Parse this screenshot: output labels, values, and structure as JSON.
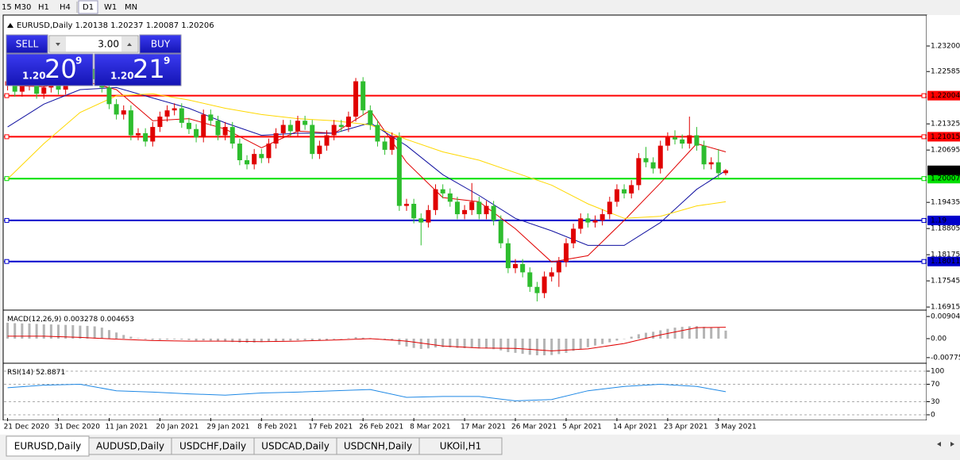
{
  "toolbar": [
    "15",
    "M30",
    "H1",
    "H4",
    "D1",
    "W1",
    "MN"
  ],
  "symbol": "EURUSD,Daily",
  "trade_panel": {
    "sell": "SELL",
    "buy": "BUY",
    "lots": "3.00",
    "bid": {
      "big": "1.20",
      "pips": "20",
      "frac": "9"
    },
    "ask": {
      "big": "1.20",
      "pips": "21",
      "frac": "9"
    }
  },
  "chart_data": [
    {
      "type": "candlestick",
      "up_color": "#e00000",
      "down_color": "#2ebd2e",
      "open": [
        1.2225,
        1.2235,
        1.221,
        1.2225,
        1.224,
        1.2205,
        1.222,
        1.223,
        1.2215,
        1.2245,
        1.226,
        1.225,
        1.2265,
        1.224,
        1.222,
        1.218,
        1.2155,
        1.2165,
        1.2105,
        1.211,
        1.209,
        1.2125,
        1.215,
        1.2165,
        1.217,
        1.2135,
        1.212,
        1.21,
        1.2155,
        1.214,
        1.2105,
        1.2125,
        1.2085,
        1.2045,
        1.2035,
        1.206,
        1.205,
        1.2085,
        1.211,
        1.213,
        1.2115,
        1.214,
        1.213,
        1.206,
        1.208,
        1.2105,
        1.213,
        1.2125,
        1.215,
        1.2235,
        1.2165,
        1.213,
        1.209,
        1.207,
        1.21,
        1.1935,
        1.194,
        1.1905,
        1.1895,
        1.1925,
        1.1975,
        1.1965,
        1.1945,
        1.1915,
        1.1925,
        1.1945,
        1.1915,
        1.1935,
        1.19,
        1.1845,
        1.1785,
        1.1795,
        1.1775,
        1.174,
        1.1725,
        1.1765,
        1.1775,
        1.18,
        1.1845,
        1.188,
        1.1905,
        1.1895,
        1.19,
        1.1915,
        1.1945,
        1.1975,
        1.1965,
        1.1985,
        1.205,
        1.204,
        1.2025,
        1.208,
        1.21,
        1.2095,
        1.2085,
        1.2105,
        1.208,
        1.2035,
        1.204,
        1.20138
      ],
      "high": [
        1.2247,
        1.2247,
        1.2237,
        1.2252,
        1.2252,
        1.2232,
        1.2242,
        1.2242,
        1.2257,
        1.2272,
        1.2272,
        1.2277,
        1.2277,
        1.2252,
        1.2232,
        1.2192,
        1.2177,
        1.2177,
        1.2122,
        1.2122,
        1.2137,
        1.2162,
        1.2177,
        1.2182,
        1.2182,
        1.2147,
        1.2132,
        1.2167,
        1.2167,
        1.2152,
        1.2137,
        1.2137,
        1.2097,
        1.2057,
        1.2072,
        1.2072,
        1.2097,
        1.2122,
        1.2142,
        1.2142,
        1.2152,
        1.2152,
        1.2142,
        1.2092,
        1.2117,
        1.2142,
        1.2142,
        1.2162,
        1.2243,
        1.2245,
        1.2177,
        1.2142,
        1.2102,
        1.2112,
        1.2112,
        1.1952,
        1.1952,
        1.1917,
        1.1937,
        1.1987,
        1.1987,
        1.1977,
        1.1957,
        1.1937,
        1.199,
        1.1957,
        1.1947,
        1.1947,
        1.1912,
        1.1857,
        1.1807,
        1.1807,
        1.1787,
        1.1752,
        1.1777,
        1.1787,
        1.1812,
        1.1857,
        1.1892,
        1.1917,
        1.1917,
        1.1912,
        1.1927,
        1.1957,
        1.1987,
        1.1987,
        1.1997,
        1.2062,
        1.2077,
        1.2052,
        1.2092,
        1.2112,
        1.2117,
        1.2107,
        1.215,
        1.2125,
        1.2092,
        1.2052,
        1.2072,
        1.20237
      ],
      "low": [
        1.2213,
        1.2198,
        1.2198,
        1.2213,
        1.2193,
        1.2193,
        1.2208,
        1.2203,
        1.2203,
        1.2233,
        1.2238,
        1.2238,
        1.2228,
        1.2208,
        1.2168,
        1.2143,
        1.2143,
        1.2093,
        1.2093,
        1.2078,
        1.2078,
        1.2113,
        1.2138,
        1.2153,
        1.2123,
        1.2108,
        1.2088,
        1.2088,
        1.2128,
        1.2093,
        1.2093,
        1.2073,
        1.2033,
        1.2023,
        1.2023,
        1.2038,
        1.2038,
        1.2073,
        1.2098,
        1.2103,
        1.2103,
        1.2118,
        1.2048,
        1.2048,
        1.2068,
        1.2093,
        1.2113,
        1.2113,
        1.2138,
        1.2153,
        1.2118,
        1.2078,
        1.2058,
        1.2058,
        1.1923,
        1.1923,
        1.1893,
        1.184,
        1.1883,
        1.1913,
        1.1953,
        1.1933,
        1.1903,
        1.1903,
        1.1913,
        1.1903,
        1.1903,
        1.1888,
        1.1833,
        1.1773,
        1.1773,
        1.1763,
        1.1728,
        1.1705,
        1.1713,
        1.1753,
        1.174,
        1.1788,
        1.1833,
        1.1868,
        1.1883,
        1.1883,
        1.1888,
        1.1903,
        1.1933,
        1.1953,
        1.1953,
        1.1973,
        1.2028,
        1.2013,
        1.2013,
        1.2068,
        1.2083,
        1.2073,
        1.2073,
        1.2068,
        1.2023,
        1.2023,
        1.2003,
        1.20087
      ],
      "close": [
        1.2235,
        1.221,
        1.2225,
        1.224,
        1.2205,
        1.222,
        1.223,
        1.2215,
        1.2245,
        1.226,
        1.225,
        1.2265,
        1.224,
        1.222,
        1.218,
        1.2155,
        1.2165,
        1.2105,
        1.211,
        1.209,
        1.2125,
        1.215,
        1.2165,
        1.217,
        1.2135,
        1.212,
        1.21,
        1.2155,
        1.214,
        1.2105,
        1.2125,
        1.2085,
        1.2045,
        1.2035,
        1.206,
        1.205,
        1.2085,
        1.211,
        1.213,
        1.2115,
        1.214,
        1.213,
        1.206,
        1.208,
        1.2105,
        1.213,
        1.2125,
        1.215,
        1.2235,
        1.2165,
        1.213,
        1.209,
        1.207,
        1.21,
        1.1935,
        1.194,
        1.1905,
        1.1895,
        1.1925,
        1.1975,
        1.1965,
        1.1945,
        1.1915,
        1.1925,
        1.1945,
        1.1915,
        1.1935,
        1.19,
        1.1845,
        1.1785,
        1.1795,
        1.1775,
        1.174,
        1.1725,
        1.1765,
        1.1775,
        1.18,
        1.1845,
        1.188,
        1.1905,
        1.1895,
        1.19,
        1.1915,
        1.1945,
        1.1975,
        1.1965,
        1.1985,
        1.205,
        1.204,
        1.2025,
        1.208,
        1.21,
        1.2095,
        1.2085,
        1.2105,
        1.208,
        1.2035,
        1.204,
        1.20138,
        1.20206
      ],
      "series": [
        {
          "color": "#e00000",
          "x": [
            0,
            5,
            10,
            15,
            20,
            25,
            30,
            35,
            40,
            45,
            50,
            55,
            60,
            65,
            70,
            75,
            80,
            85,
            90,
            95,
            99
          ],
          "values": [
            1.2225,
            1.2222,
            1.2238,
            1.2215,
            1.214,
            1.2145,
            1.212,
            1.2075,
            1.2115,
            1.211,
            1.2165,
            1.204,
            1.1955,
            1.1945,
            1.188,
            1.18,
            1.1815,
            1.19,
            1.199,
            1.2085,
            1.2065
          ]
        },
        {
          "color": "#1010a0",
          "x": [
            0,
            5,
            10,
            15,
            20,
            25,
            30,
            35,
            40,
            45,
            50,
            55,
            60,
            65,
            70,
            75,
            80,
            85,
            90,
            95,
            99
          ],
          "values": [
            1.2125,
            1.218,
            1.2215,
            1.222,
            1.2195,
            1.217,
            1.2135,
            1.2105,
            1.211,
            1.211,
            1.2135,
            1.208,
            1.201,
            1.196,
            1.1905,
            1.1875,
            1.184,
            1.184,
            1.1895,
            1.1975,
            1.202
          ]
        },
        {
          "color": "#ffd800",
          "x": [
            0,
            5,
            10,
            15,
            20,
            25,
            30,
            35,
            40,
            45,
            50,
            55,
            60,
            65,
            70,
            75,
            80,
            85,
            90,
            95,
            99
          ],
          "values": [
            1.2,
            1.2085,
            1.216,
            1.22,
            1.2205,
            1.219,
            1.217,
            1.2155,
            1.2145,
            1.214,
            1.213,
            1.2095,
            1.2065,
            1.2045,
            1.2015,
            1.1985,
            1.194,
            1.1905,
            1.191,
            1.1935,
            1.1945
          ]
        }
      ],
      "levels": [
        {
          "value": 1.22004,
          "color": "#ff0000"
        },
        {
          "value": 1.21015,
          "color": "#ff0000"
        },
        {
          "value": 1.20007,
          "color": "#00e000"
        },
        {
          "value": 1.19,
          "color": "#0000cc"
        },
        {
          "value": 1.18011,
          "color": "#0000cc"
        }
      ],
      "xlim": [
        -0.5,
        126.7
      ],
      "ylim": [
        1.1686,
        1.2383
      ],
      "yticks": [
        {
          "value": 1.232,
          "label": "1.23200"
        },
        {
          "value": 1.22585,
          "label": "1.22585"
        },
        {
          "value": 1.21325,
          "label": "1.21325"
        },
        {
          "value": 1.20695,
          "label": "1.20695"
        },
        {
          "value": 1.19435,
          "label": "1.19435"
        },
        {
          "value": 1.18805,
          "label": "1.18805"
        },
        {
          "value": 1.18175,
          "label": "1.18175"
        },
        {
          "value": 1.17545,
          "label": "1.17545"
        },
        {
          "value": 1.16915,
          "label": "1.16915"
        }
      ],
      "xticks": [
        {
          "value": 0,
          "label": "21 Dec 2020"
        },
        {
          "value": 7,
          "label": "31 Dec 2020"
        },
        {
          "value": 14,
          "label": "11 Jan 2021"
        },
        {
          "value": 21,
          "label": "20 Jan 2021"
        },
        {
          "value": 28,
          "label": "29 Jan 2021"
        },
        {
          "value": 35,
          "label": "8 Feb 2021"
        },
        {
          "value": 42,
          "label": "17 Feb 2021"
        },
        {
          "value": 49,
          "label": "26 Feb 2021"
        },
        {
          "value": 56,
          "label": "8 Mar 2021"
        },
        {
          "value": 63,
          "label": "17 Mar 2021"
        },
        {
          "value": 70,
          "label": "26 Mar 2021"
        },
        {
          "value": 77,
          "label": "5 Apr 2021"
        },
        {
          "value": 84,
          "label": "14 Apr 2021"
        },
        {
          "value": 91,
          "label": "23 Apr 2021"
        },
        {
          "value": 98,
          "label": "3 May 2021"
        }
      ]
    },
    {
      "type": "macd",
      "label": "MACD(12,26,9)",
      "hist_color": "#b4b4b4",
      "histogram": [
        0.0065,
        0.0063,
        0.0062,
        0.0062,
        0.006,
        0.0058,
        0.0058,
        0.0057,
        0.0056,
        0.0055,
        0.0053,
        0.0052,
        0.005,
        0.0045,
        0.0035,
        0.0025,
        0.0015,
        0.0008,
        0.0002,
        -0.0003,
        -0.0005,
        -0.0005,
        -0.0004,
        -0.0003,
        -0.0004,
        -0.0006,
        -0.0008,
        -0.0007,
        -0.0008,
        -0.001,
        -0.0012,
        -0.0014,
        -0.0016,
        -0.0017,
        -0.0016,
        -0.0014,
        -0.0012,
        -0.001,
        -0.0009,
        -0.0008,
        -0.0007,
        -0.0006,
        -0.0008,
        -0.0007,
        -0.0005,
        -0.0003,
        0,
        0.0002,
        0.0006,
        0.0004,
        0.0002,
        0,
        -0.0004,
        -0.0008,
        -0.0025,
        -0.0032,
        -0.0038,
        -0.0042,
        -0.004,
        -0.0036,
        -0.0035,
        -0.0036,
        -0.0038,
        -0.0039,
        -0.0038,
        -0.004,
        -0.004,
        -0.0043,
        -0.0048,
        -0.0055,
        -0.0058,
        -0.0062,
        -0.0066,
        -0.0068,
        -0.0068,
        -0.0067,
        -0.0063,
        -0.0058,
        -0.005,
        -0.0042,
        -0.0035,
        -0.0028,
        -0.0022,
        -0.0015,
        -0.0008,
        0,
        0.0008,
        0.0018,
        0.0024,
        0.0028,
        0.0034,
        0.004,
        0.0045,
        0.0048,
        0.005,
        0.0051,
        0.0048,
        0.0046,
        0.0045,
        0.003278
      ],
      "signal": {
        "color": "#e00000",
        "x": [
          0,
          5,
          10,
          15,
          20,
          25,
          30,
          35,
          40,
          45,
          50,
          55,
          60,
          65,
          70,
          75,
          80,
          85,
          90,
          95,
          99
        ],
        "values": [
          0.001,
          0.001,
          0.0005,
          -0.0002,
          -0.0008,
          -0.001,
          -0.001,
          -0.0012,
          -0.001,
          -0.0006,
          0,
          -0.001,
          -0.003,
          -0.0038,
          -0.004,
          -0.005,
          -0.0042,
          -0.002,
          0.0015,
          0.0045,
          0.004653
        ]
      },
      "xlim": [
        -0.5,
        126.7
      ],
      "ylim": [
        -0.0094,
        0.011
      ],
      "yticks": [
        0.009041,
        {
          "value": 0,
          "label": "0.00"
        },
        -0.00775
      ]
    },
    {
      "type": "rsi",
      "label": "RSI(14)",
      "color": "#1e88e5",
      "x": [
        0,
        5,
        10,
        15,
        20,
        25,
        30,
        35,
        40,
        45,
        50,
        55,
        60,
        65,
        70,
        75,
        80,
        85,
        90,
        95,
        99
      ],
      "values": [
        62,
        68,
        70,
        55,
        52,
        48,
        45,
        50,
        52,
        55,
        58,
        40,
        42,
        42,
        32,
        35,
        55,
        65,
        70,
        65,
        52.8871
      ],
      "xlim": [
        -0.5,
        126.7
      ],
      "ylim": [
        -7.3,
        114.5
      ],
      "yticks": [
        100,
        70,
        30,
        0
      ]
    }
  ],
  "tabs": [
    "EURUSD,Daily",
    "AUDUSD,Daily",
    "USDCHF,Daily",
    "USDCAD,Daily",
    "USDCNH,Daily",
    "UKOil,H1"
  ]
}
